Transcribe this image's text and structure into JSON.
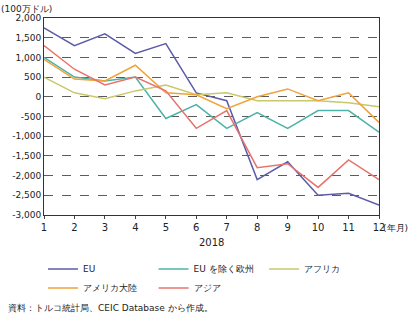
{
  "chart_data": {
    "type": "line",
    "y_label": "(100万ドル)",
    "x_label": "2018",
    "annotations": [
      "(年月)"
    ],
    "source": "資料：トルコ統計局、CEIC Database から作成。",
    "categories": [
      "1",
      "2",
      "3",
      "4",
      "5",
      "6",
      "7",
      "8",
      "9",
      "10",
      "11",
      "12"
    ],
    "series": [
      {
        "name": "EU",
        "color": "#5c5ca8",
        "values": [
          1750,
          1300,
          1600,
          1100,
          1350,
          100,
          -100,
          -2100,
          -1650,
          -2500,
          -2450,
          -2750
        ]
      },
      {
        "name": "EU を除く欧州",
        "color": "#4db3a8",
        "values": [
          1000,
          500,
          400,
          500,
          -550,
          -200,
          -800,
          -400,
          -800,
          -350,
          -350,
          -900
        ]
      },
      {
        "name": "アフリカ",
        "color": "#c9c86a",
        "values": [
          500,
          100,
          -50,
          150,
          300,
          50,
          100,
          -100,
          -100,
          -100,
          -150,
          -250
        ]
      },
      {
        "name": "アメリカ大陸",
        "color": "#f0a33a",
        "values": [
          950,
          450,
          400,
          800,
          100,
          50,
          -300,
          0,
          200,
          -100,
          100,
          -650
        ]
      },
      {
        "name": "アジア",
        "color": "#e8736b",
        "values": [
          1300,
          700,
          300,
          500,
          150,
          -800,
          -350,
          -1800,
          -1700,
          -2300,
          -1600,
          -2100
        ]
      }
    ],
    "ylim": [
      -3000,
      2000
    ],
    "yticks": [
      {
        "value": 2000,
        "label": "2,000"
      },
      {
        "value": 1500,
        "label": "1,500"
      },
      {
        "value": 1000,
        "label": "1,000"
      },
      500,
      0,
      -500,
      {
        "value": -1000,
        "label": "-1,000"
      },
      {
        "value": -1500,
        "label": "-1,500"
      },
      {
        "value": -2000,
        "label": "-2,000"
      },
      {
        "value": -2500,
        "label": "-2,500"
      },
      {
        "value": -3000,
        "label": "-3,000"
      }
    ],
    "grid": true,
    "legend": "bottom"
  }
}
